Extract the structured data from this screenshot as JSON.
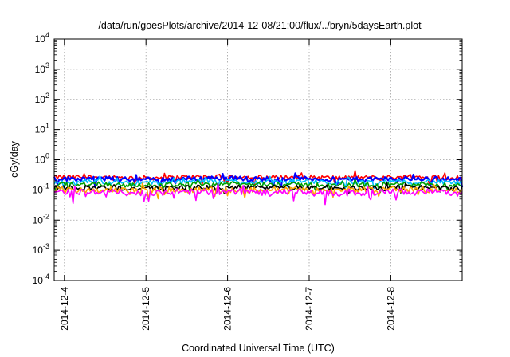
{
  "chart_data": {
    "type": "line",
    "title": "/data/run/goesPlots/archive/2014-12-08/21:00/flux/../bryn/5daysEarth.plot",
    "xlabel": "Coordinated Universal Time (UTC)",
    "ylabel": "cGy/day",
    "y_scale": "log",
    "ylim_exponents": [
      -4,
      4
    ],
    "y_ticks": [
      {
        "base": "10",
        "exp": "-4"
      },
      {
        "base": "10",
        "exp": "-3"
      },
      {
        "base": "10",
        "exp": "-2"
      },
      {
        "base": "10",
        "exp": "-1"
      },
      {
        "base": "10",
        "exp": "0"
      },
      {
        "base": "10",
        "exp": "1"
      },
      {
        "base": "10",
        "exp": "2"
      },
      {
        "base": "10",
        "exp": "3"
      },
      {
        "base": "10",
        "exp": "4"
      }
    ],
    "x_range_days": [
      "2014-12-03 21:00",
      "2014-12-08 21:00"
    ],
    "x_ticks": [
      "2014-12-4",
      "2014-12-5",
      "2014-12-6",
      "2014-12-7",
      "2014-12-8"
    ],
    "grid": true,
    "legend": "none",
    "series": [
      {
        "color": "#ff0000",
        "values": [
          0.26,
          0.27,
          0.25,
          0.26,
          0.28,
          0.26,
          0.27,
          0.25,
          0.26,
          0.27,
          0.25
        ]
      },
      {
        "color": "#0000ff",
        "values": [
          0.23,
          0.24,
          0.22,
          0.23,
          0.25,
          0.23,
          0.24,
          0.22,
          0.23,
          0.24,
          0.22
        ]
      },
      {
        "color": "#00bfff",
        "values": [
          0.18,
          0.19,
          0.17,
          0.18,
          0.2,
          0.18,
          0.19,
          0.17,
          0.18,
          0.19,
          0.17
        ]
      },
      {
        "color": "#00a000",
        "values": [
          0.15,
          0.16,
          0.14,
          0.15,
          0.16,
          0.15,
          0.15,
          0.14,
          0.15,
          0.16,
          0.14
        ]
      },
      {
        "color": "#000000",
        "values": [
          0.12,
          0.12,
          0.11,
          0.12,
          0.12,
          0.12,
          0.12,
          0.11,
          0.12,
          0.12,
          0.11
        ]
      },
      {
        "color": "#ffa500",
        "values": [
          0.1,
          0.1,
          0.095,
          0.1,
          0.1,
          0.1,
          0.1,
          0.095,
          0.1,
          0.1,
          0.095
        ]
      },
      {
        "color": "#ff00ff",
        "values": [
          0.085,
          0.088,
          0.08,
          0.085,
          0.087,
          0.083,
          0.085,
          0.075,
          0.085,
          0.088,
          0.08
        ]
      }
    ]
  }
}
